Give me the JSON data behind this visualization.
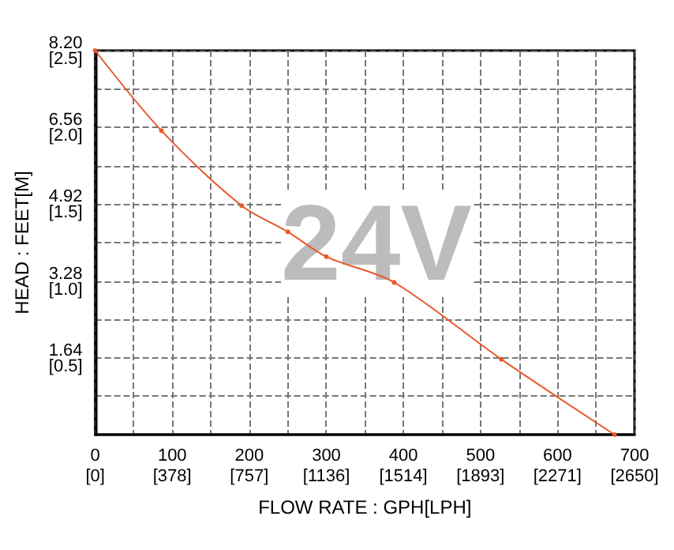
{
  "chart_data": {
    "type": "line",
    "xlabel": "FLOW RATE : GPH[LPH]",
    "ylabel": "HEAD : FEET[M]",
    "annotations": [
      "24V"
    ],
    "x": [
      0,
      86,
      190,
      250,
      300,
      388,
      527,
      674
    ],
    "series": [
      {
        "color": "#e8582a",
        "values": [
          8.2,
          6.49,
          4.89,
          4.33,
          3.8,
          3.25,
          1.61,
          0
        ]
      }
    ],
    "xlim": [
      0,
      700
    ],
    "ylim": [
      0,
      8.2
    ],
    "xticks": [
      0,
      {
        "value": 50,
        "label": null
      },
      100,
      {
        "value": 150,
        "label": null
      },
      200,
      {
        "value": 250,
        "label": null
      },
      300,
      {
        "value": 350,
        "label": null
      },
      400,
      {
        "value": 450,
        "label": null
      },
      500,
      {
        "value": 550,
        "label": null
      },
      600,
      {
        "value": 650,
        "label": null
      },
      700
    ],
    "yticks": [
      {
        "value": 0.82,
        "label": null
      },
      1.64,
      {
        "value": 2.46,
        "label": null
      },
      3.28,
      {
        "value": 4.1,
        "label": null
      },
      4.92,
      {
        "value": 5.74,
        "label": null
      },
      6.56,
      {
        "value": 7.38,
        "label": null
      },
      {
        "value": 8.2,
        "label": "8.20"
      }
    ],
    "x2lim": [
      0,
      2650
    ],
    "x2ticks": [
      {
        "value": 0,
        "label": "[0]"
      },
      {
        "value": 378,
        "label": "[378]"
      },
      {
        "value": 757,
        "label": "[757]"
      },
      {
        "value": 1136,
        "label": "[1136]"
      },
      {
        "value": 1514,
        "label": "[1514]"
      },
      {
        "value": 1893,
        "label": "[1893]"
      },
      {
        "value": 2271,
        "label": "[2271]"
      },
      {
        "value": 2650,
        "label": "[2650]"
      }
    ],
    "y2lim": [
      0,
      2.5
    ],
    "y2ticks": [
      {
        "value": 0.5,
        "label": "[0.5]"
      },
      {
        "value": 1,
        "label": "[1.0]"
      },
      {
        "value": 1.5,
        "label": "[1.5]"
      },
      {
        "value": 2,
        "label": "[2.0]"
      },
      {
        "value": 2.5,
        "label": "[2.5]"
      }
    ],
    "grid": true,
    "marker": "circle",
    "line_style": "solid"
  }
}
